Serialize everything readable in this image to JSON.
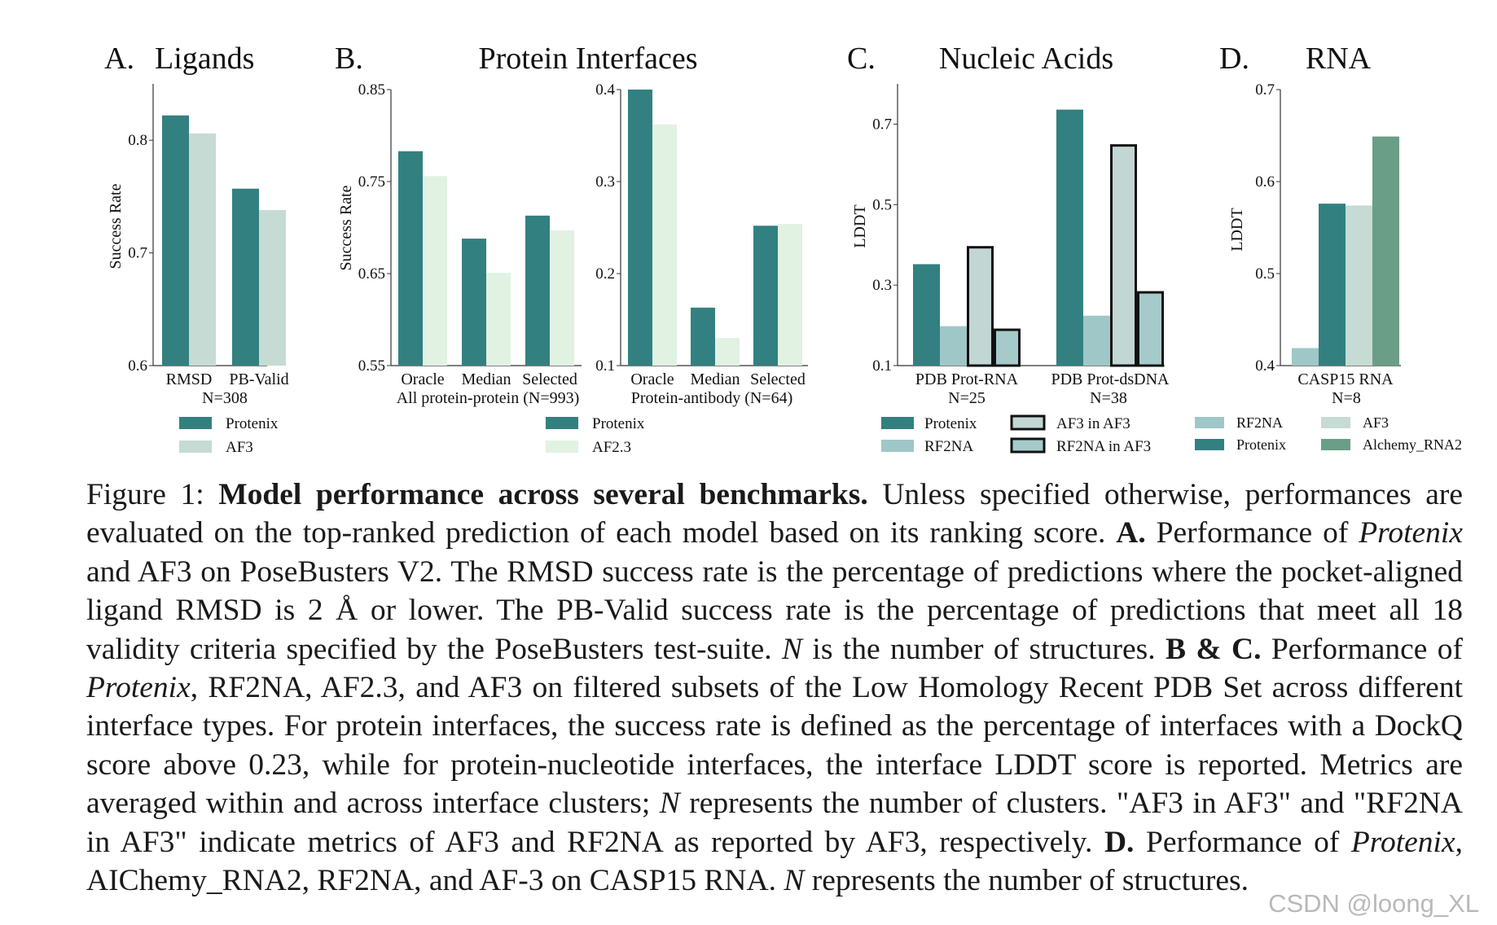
{
  "colors": {
    "protenix": "#338080",
    "af3": "#c5dbd4",
    "af23": "#e1f2e3",
    "rf2na": "#9fc7c7",
    "af3_in_af3": "#c2d6d3",
    "rf2na_in_af3": "#a6caca",
    "alchemy": "#6a9e87"
  },
  "chart_data": [
    {
      "id": "A",
      "type": "bar",
      "panel_letter": "A.",
      "title": "Ligands",
      "ylabel": "Success Rate",
      "ylim": [
        0.6,
        0.85
      ],
      "yticks": [
        "0.6",
        "0.7",
        "0.8"
      ],
      "categories": [
        "RMSD",
        "PB-Valid"
      ],
      "group_label": "N=308",
      "series": [
        {
          "name": "Protenix",
          "color_key": "protenix",
          "values": [
            0.822,
            0.757
          ]
        },
        {
          "name": "AF3",
          "color_key": "af3",
          "values": [
            0.806,
            0.738
          ]
        }
      ],
      "legend": [
        {
          "label": "Protenix",
          "color_key": "protenix"
        },
        {
          "label": "AF3",
          "color_key": "af3"
        }
      ]
    },
    {
      "id": "B1",
      "type": "bar",
      "panel_letter": "B.",
      "title": "Protein Interfaces",
      "ylabel": "Success Rate",
      "ylim": [
        0.55,
        0.85
      ],
      "yticks": [
        "0.55",
        "0.65",
        "0.75",
        "0.85"
      ],
      "categories": [
        "Oracle",
        "Median",
        "Selected"
      ],
      "group_label": "All protein-protein (N=993)",
      "series": [
        {
          "name": "Protenix",
          "color_key": "protenix",
          "values": [
            0.783,
            0.688,
            0.713
          ]
        },
        {
          "name": "AF2.3",
          "color_key": "af23",
          "values": [
            0.756,
            0.651,
            0.697
          ]
        }
      ],
      "legend": [
        {
          "label": "Protenix",
          "color_key": "protenix"
        },
        {
          "label": "AF2.3",
          "color_key": "af23"
        }
      ]
    },
    {
      "id": "B2",
      "type": "bar",
      "ylim": [
        0.1,
        0.4
      ],
      "yticks": [
        "0.1",
        "0.2",
        "0.3",
        "0.4"
      ],
      "categories": [
        "Oracle",
        "Median",
        "Selected"
      ],
      "group_label": "Protein-antibody (N=64)",
      "series": [
        {
          "name": "Protenix",
          "color_key": "protenix",
          "values": [
            0.4,
            0.163,
            0.252
          ]
        },
        {
          "name": "AF2.3",
          "color_key": "af23",
          "values": [
            0.362,
            0.13,
            0.254
          ]
        }
      ]
    },
    {
      "id": "C",
      "type": "bar",
      "panel_letter": "C.",
      "title": "Nucleic Acids",
      "ylabel": "LDDT",
      "ylim": [
        0.1,
        0.8
      ],
      "yticks": [
        "0.1",
        "0.3",
        "0.5",
        "0.7"
      ],
      "categories": [
        "PDB Prot-RNA",
        "PDB Prot-dsDNA"
      ],
      "group_labels": [
        "N=25",
        "N=38"
      ],
      "series": [
        {
          "name": "Protenix",
          "color_key": "protenix",
          "values": [
            0.352,
            0.736
          ]
        },
        {
          "name": "RF2NA",
          "color_key": "rf2na",
          "values": [
            0.198,
            0.224
          ]
        },
        {
          "name": "AF3 in AF3",
          "color_key": "af3_in_af3",
          "outlined": true,
          "values": [
            0.394,
            0.647
          ]
        },
        {
          "name": "RF2NA in AF3",
          "color_key": "rf2na_in_af3",
          "outlined": true,
          "values": [
            0.189,
            0.282
          ]
        }
      ],
      "legend": [
        {
          "label": "Protenix",
          "color_key": "protenix"
        },
        {
          "label": "AF3 in AF3",
          "color_key": "af3_in_af3",
          "outlined": true
        },
        {
          "label": "RF2NA",
          "color_key": "rf2na"
        },
        {
          "label": "RF2NA in AF3",
          "color_key": "rf2na_in_af3",
          "outlined": true
        }
      ]
    },
    {
      "id": "D",
      "type": "bar",
      "panel_letter": "D.",
      "title": "RNA",
      "ylabel": "LDDT",
      "ylim": [
        0.4,
        0.7
      ],
      "yticks": [
        "0.4",
        "0.5",
        "0.6",
        "0.7"
      ],
      "categories": [
        "CASP15 RNA"
      ],
      "group_label": "N=8",
      "series": [
        {
          "name": "RF2NA",
          "color_key": "rf2na",
          "values": [
            0.419
          ]
        },
        {
          "name": "Protenix",
          "color_key": "protenix",
          "values": [
            0.576
          ]
        },
        {
          "name": "AF3",
          "color_key": "af3",
          "values": [
            0.574
          ]
        },
        {
          "name": "Alchemy_RNA2",
          "color_key": "alchemy",
          "values": [
            0.649
          ]
        }
      ],
      "legend": [
        {
          "label": "RF2NA",
          "color_key": "rf2na"
        },
        {
          "label": "AF3",
          "color_key": "af3"
        },
        {
          "label": "Protenix",
          "color_key": "protenix"
        },
        {
          "label": "Alchemy_RNA2",
          "color_key": "alchemy"
        }
      ]
    }
  ],
  "caption": {
    "figure_label": "Figure 1:",
    "bold_title": "Model performance across several benchmarks.",
    "s1": " Unless specified otherwise, performances are evaluated on the top-ranked prediction of each model based on its ranking score. ",
    "a_label": "A.",
    "s2": " Performance of ",
    "protenix_1": "Protenix",
    "s3": " and AF3 on PoseBusters V2. The RMSD success rate is the percentage of predictions where the pocket-aligned ligand RMSD is 2 Å or lower. The PB-Valid success rate is the percentage of predictions that meet all 18 validity criteria specified by the PoseBusters test-suite. ",
    "n_1": "N",
    "s4": " is the number of structures. ",
    "bc_label": "B & C.",
    "s5": " Performance of ",
    "protenix_2": "Protenix",
    "s6": ", RF2NA, AF2.3, and AF3 on filtered subsets of the Low Homology Recent PDB Set across different interface types. For protein interfaces, the success rate is defined as the percentage of interfaces with a DockQ score above 0.23, while for protein-nucleotide interfaces, the interface LDDT score is reported. Metrics are averaged within and across interface clusters; ",
    "n_2": "N",
    "s7": " represents the number of clusters. \"AF3 in AF3\" and \"RF2NA in AF3\" indicate metrics of AF3 and RF2NA as reported by AF3, respectively. ",
    "d_label": "D.",
    "s8": " Performance of ",
    "protenix_3": "Protenix",
    "s9": ", AIChemy_RNA2, RF2NA, and AF-3 on CASP15 RNA. ",
    "n_3": "N",
    "s10": " represents the number of structures."
  },
  "watermark": "CSDN @loong_XL"
}
